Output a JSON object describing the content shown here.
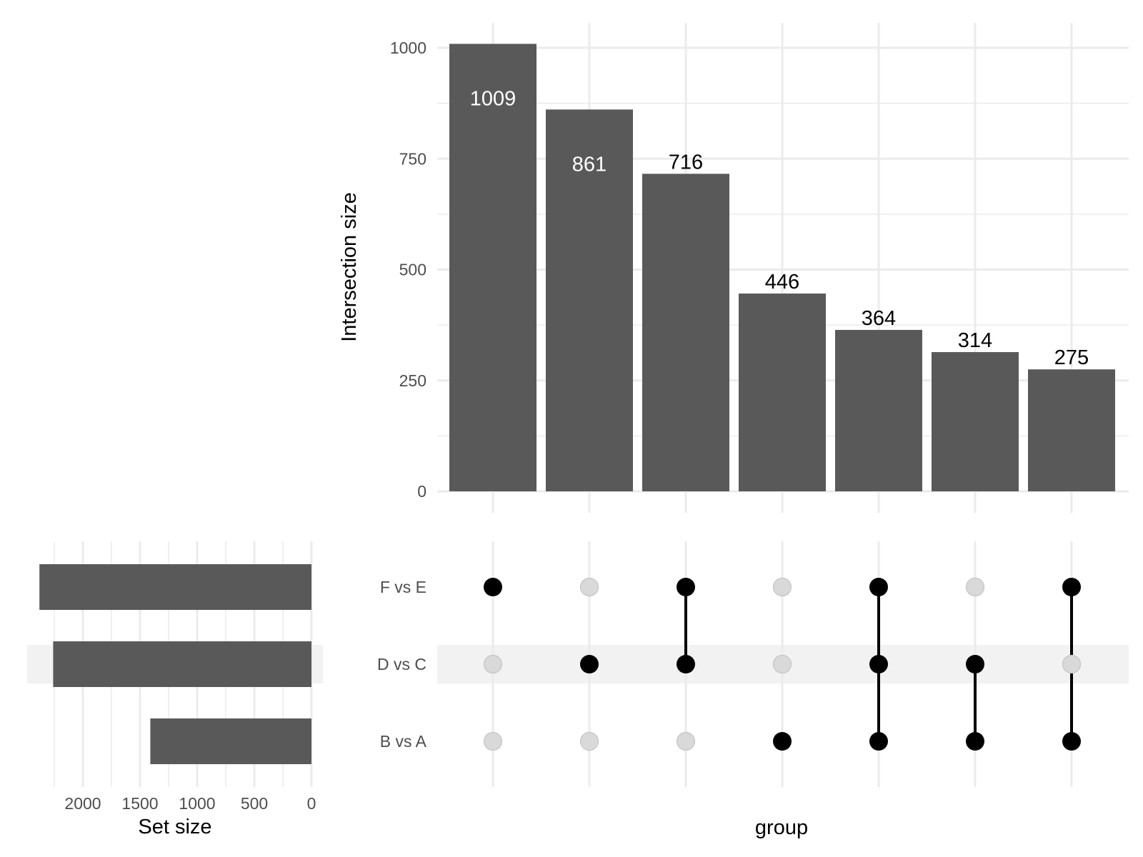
{
  "chart_data": {
    "type": "upset",
    "intersection_plot": {
      "type": "bar",
      "ylabel": "Intersection size",
      "ylim": [
        0,
        1050
      ],
      "yticks": [
        0,
        250,
        500,
        750,
        1000
      ],
      "values": [
        1009,
        861,
        716,
        446,
        364,
        314,
        275
      ],
      "labels": [
        "1009",
        "861",
        "716",
        "446",
        "364",
        "314",
        "275"
      ],
      "grid": true
    },
    "matrix": {
      "xlabel": "group",
      "sets": [
        "F vs E",
        "D vs C",
        "B vs A"
      ],
      "highlighted_set": "D vs C",
      "membership": [
        [
          "F vs E"
        ],
        [
          "D vs C"
        ],
        [
          "F vs E",
          "D vs C"
        ],
        [
          "B vs A"
        ],
        [
          "F vs E",
          "D vs C",
          "B vs A"
        ],
        [
          "D vs C",
          "B vs A"
        ],
        [
          "F vs E",
          "B vs A"
        ]
      ]
    },
    "set_size_plot": {
      "type": "bar",
      "xlabel": "Set size",
      "orientation": "horizontal-reversed",
      "xlim": [
        0,
        2600
      ],
      "xticks": [
        2000,
        1500,
        1000,
        500,
        0
      ],
      "values": [
        2380,
        2260,
        1410
      ]
    },
    "colors": {
      "bar": "#595959",
      "dot_on": "#000000",
      "dot_off": "#d9d9d9",
      "grid": "#ebebeb",
      "highlight": "#f2f2f2"
    }
  }
}
